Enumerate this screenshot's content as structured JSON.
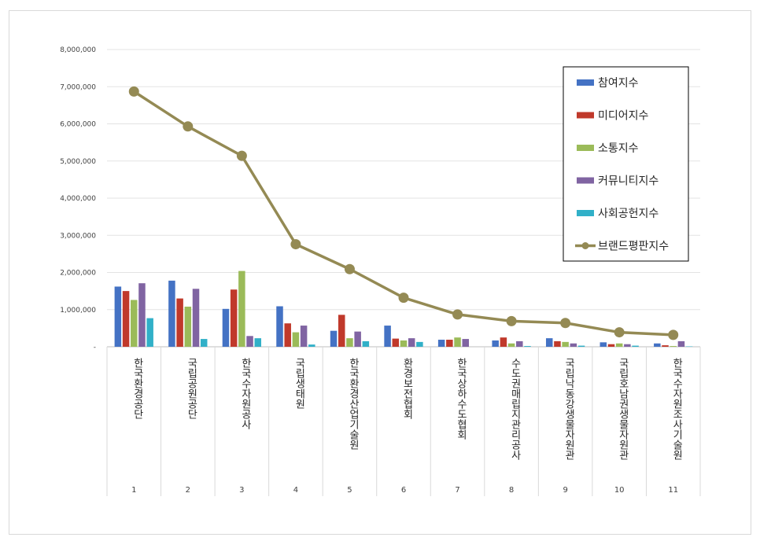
{
  "chart_data": {
    "type": "bar",
    "y_tick_labels": [
      "-",
      "1,000,000",
      "2,000,000",
      "3,000,000",
      "4,000,000",
      "5,000,000",
      "6,000,000",
      "7,000,000",
      "8,000,000"
    ],
    "ylim": [
      0,
      8000000
    ],
    "grid": true,
    "legend_position": "top-right",
    "categories": [
      {
        "rank": "1",
        "name": "한국환경공단"
      },
      {
        "rank": "2",
        "name": "국립공원공단"
      },
      {
        "rank": "3",
        "name": "한국수자원공사"
      },
      {
        "rank": "4",
        "name": "국립생태원"
      },
      {
        "rank": "5",
        "name": "한국환경산업기술원"
      },
      {
        "rank": "6",
        "name": "환경보전협회"
      },
      {
        "rank": "7",
        "name": "한국상하수도협회"
      },
      {
        "rank": "8",
        "name": "수도권매립지관리공사"
      },
      {
        "rank": "9",
        "name": "국립낙동강생물자원관"
      },
      {
        "rank": "10",
        "name": "국립호남권생물자원관"
      },
      {
        "rank": "11",
        "name": "한국수자원조사기술원"
      }
    ],
    "series": [
      {
        "name": "참여지수",
        "type": "bar",
        "color": "#4472C4",
        "values": [
          1620000,
          1780000,
          1020000,
          1090000,
          430000,
          570000,
          190000,
          170000,
          230000,
          120000,
          90000
        ]
      },
      {
        "name": "미디어지수",
        "type": "bar",
        "color": "#C0392B",
        "values": [
          1500000,
          1300000,
          1540000,
          630000,
          860000,
          220000,
          190000,
          250000,
          150000,
          70000,
          40000
        ]
      },
      {
        "name": "소통지수",
        "type": "bar",
        "color": "#9BBB59",
        "values": [
          1260000,
          1080000,
          2040000,
          390000,
          230000,
          170000,
          250000,
          90000,
          130000,
          90000,
          20000
        ]
      },
      {
        "name": "커뮤니티지수",
        "type": "bar",
        "color": "#8064A2",
        "values": [
          1710000,
          1560000,
          290000,
          570000,
          410000,
          230000,
          210000,
          150000,
          90000,
          70000,
          150000
        ]
      },
      {
        "name": "사회공헌지수",
        "type": "bar",
        "color": "#31B0C8",
        "values": [
          770000,
          210000,
          230000,
          60000,
          150000,
          130000,
          0,
          20000,
          30000,
          30000,
          10000
        ]
      },
      {
        "name": "브랜드평판지수",
        "type": "line",
        "color": "#948A54",
        "values": [
          6870000,
          5930000,
          5140000,
          2760000,
          2090000,
          1320000,
          870000,
          690000,
          640000,
          390000,
          320000
        ]
      }
    ]
  }
}
